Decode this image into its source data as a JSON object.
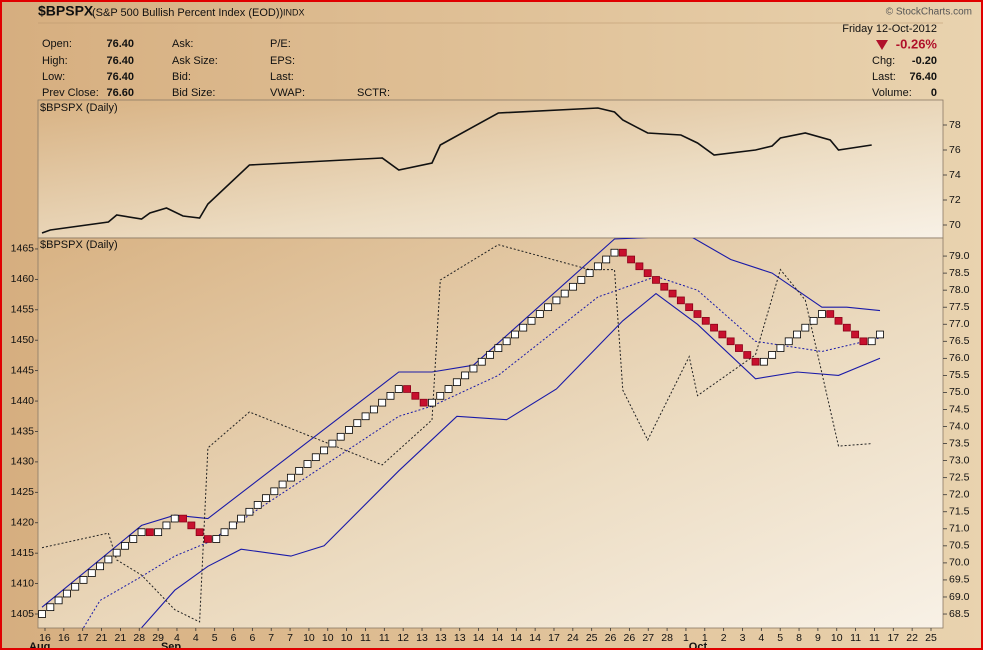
{
  "header": {
    "symbol": "$BPSPX",
    "name": "(S&P 500 Bullish Percent Index (EOD))",
    "exchange": "INDX",
    "source": "© StockCharts.com",
    "date": "Friday  12-Oct-2012",
    "change_pct": "-0.26%",
    "quote": [
      {
        "label": "Open:",
        "value": "76.40"
      },
      {
        "label": "High:",
        "value": "76.40"
      },
      {
        "label": "Low:",
        "value": "76.40"
      },
      {
        "label": "Prev Close:",
        "value": "76.60"
      }
    ],
    "bid_ask": [
      "Ask:",
      "Ask Size:",
      "Bid:",
      "Bid Size:"
    ],
    "fundamentals": [
      "P/E:",
      "EPS:",
      "Last:",
      "VWAP:"
    ],
    "sctr": "SCTR:",
    "summary": [
      {
        "label": "Chg:",
        "value": "-0.20"
      },
      {
        "label": "Last:",
        "value": "76.40"
      },
      {
        "label": "Volume:",
        "value": "0"
      }
    ]
  },
  "chart_data": [
    {
      "type": "line",
      "label": "$BPSPX (Daily)",
      "color": "#111111",
      "x": [
        0,
        1,
        8,
        9,
        12,
        13,
        15,
        17,
        19,
        20,
        25,
        41,
        43,
        47,
        48,
        55,
        67,
        69,
        70,
        73,
        77,
        79,
        81,
        86,
        88,
        89,
        92,
        95,
        96,
        100
      ],
      "values": [
        69.36,
        69.6,
        70.24,
        70.8,
        70.48,
        70.96,
        71.36,
        70.72,
        70.56,
        71.68,
        74.8,
        75.36,
        74.4,
        74.96,
        76.4,
        78.96,
        79.36,
        79.04,
        78.4,
        77.36,
        77.2,
        76.56,
        75.6,
        76.0,
        76.32,
        76.96,
        77.36,
        76.8,
        76.0,
        76.4
      ],
      "ylim": [
        68.96,
        80
      ],
      "yticks": [
        70,
        72,
        74,
        76,
        78
      ]
    },
    {
      "type": "renko",
      "label": "$BPSPX (Daily)",
      "up_color": "#ffffff",
      "down_color": "#c8102e",
      "values": [
        68.6,
        68.8,
        69.0,
        69.2,
        69.4,
        69.6,
        69.8,
        70.0,
        70.2,
        70.4,
        70.6,
        70.8,
        71.0,
        70.8,
        71.0,
        71.2,
        71.4,
        71.2,
        71.0,
        70.8,
        70.6,
        70.8,
        71.0,
        71.2,
        71.4,
        71.6,
        71.8,
        72.0,
        72.2,
        72.4,
        72.6,
        72.8,
        73.0,
        73.2,
        73.4,
        73.6,
        73.8,
        74.0,
        74.2,
        74.4,
        74.6,
        74.8,
        75.0,
        75.2,
        75.0,
        74.8,
        74.6,
        74.8,
        75.0,
        75.2,
        75.4,
        75.6,
        75.8,
        76.0,
        76.2,
        76.4,
        76.6,
        76.8,
        77.0,
        77.2,
        77.4,
        77.6,
        77.8,
        78.0,
        78.2,
        78.4,
        78.6,
        78.8,
        79.0,
        79.2,
        79.0,
        78.8,
        78.6,
        78.4,
        78.2,
        78.0,
        77.8,
        77.6,
        77.4,
        77.2,
        77.0,
        76.8,
        76.6,
        76.4,
        76.2,
        76.0,
        75.8,
        76.0,
        76.2,
        76.4,
        76.6,
        76.8,
        77.0,
        77.2,
        77.4,
        77.2,
        77.0,
        76.8,
        76.6,
        76.4,
        76.6,
        76.8
      ],
      "ylim": [
        68.09,
        79.53
      ],
      "yticks": [
        68.5,
        {
          "value": 69,
          "label": "69.0"
        },
        69.5,
        {
          "value": 70,
          "label": "70.0"
        },
        70.5,
        {
          "value": 71,
          "label": "71.0"
        },
        71.5,
        {
          "value": 72,
          "label": "72.0"
        },
        72.5,
        {
          "value": 73,
          "label": "73.0"
        },
        73.5,
        {
          "value": 74,
          "label": "74.0"
        },
        74.5,
        {
          "value": 75,
          "label": "75.0"
        },
        75.5,
        {
          "value": 76,
          "label": "76.0"
        },
        76.5,
        {
          "value": 77,
          "label": "77.0"
        },
        77.5,
        {
          "value": 78,
          "label": "78.0"
        },
        78.5,
        {
          "value": 79,
          "label": "79.0"
        }
      ],
      "y2lim": [
        1402.7,
        1466.8
      ],
      "y2ticks": [
        1405,
        1410,
        1415,
        1420,
        1425,
        1430,
        1435,
        1440,
        1445,
        1450,
        1455,
        1460,
        1465
      ],
      "xtick_labels": [
        "16",
        "16",
        "17",
        "21",
        "21",
        "28",
        "29",
        "4",
        "4",
        "5",
        "6",
        "6",
        "7",
        "7",
        "10",
        "10",
        "10",
        "11",
        "11",
        "12",
        "13",
        "13",
        "13",
        "14",
        "14",
        "14",
        "14",
        "17",
        "24",
        "25",
        "26",
        "26",
        "27",
        "28",
        "1",
        "1",
        "2",
        "3",
        "4",
        "5",
        "8",
        "9",
        "10",
        "11",
        "11",
        "17",
        "22",
        "25"
      ],
      "months": [
        "Aug",
        "Sep",
        "Oct"
      ],
      "series": [
        {
          "color": "#1a1aa8",
          "style": "solid",
          "x": [
            0,
            12,
            16,
            20,
            43,
            47,
            52,
            69,
            78,
            83,
            88,
            94,
            97,
            101
          ],
          "values": [
            68.7,
            71.1,
            71.4,
            71.3,
            75.6,
            75.6,
            75.8,
            79.5,
            79.6,
            78.9,
            78.5,
            77.5,
            77.5,
            77.4
          ]
        },
        {
          "color": "#1a1aa8",
          "style": "dotted",
          "x": [
            5,
            7,
            12,
            16,
            20,
            43,
            47,
            55,
            67,
            74,
            79,
            86,
            94,
            101
          ],
          "values": [
            68.1,
            68.9,
            69.6,
            70.2,
            70.6,
            74.3,
            74.6,
            75.5,
            77.8,
            78.4,
            78.0,
            76.5,
            76.2,
            76.6
          ]
        },
        {
          "color": "#1a1aa8",
          "style": "solid",
          "x": [
            12,
            16,
            20,
            24,
            30,
            34,
            43,
            50,
            56,
            62,
            70,
            74,
            79,
            86,
            91,
            96,
            101
          ],
          "values": [
            68.1,
            69.2,
            69.9,
            70.4,
            70.2,
            70.5,
            72.7,
            74.3,
            74.2,
            75.1,
            77.1,
            77.9,
            77.0,
            75.4,
            75.6,
            75.5,
            76.0
          ]
        },
        {
          "color": "#222222",
          "style": "dotted",
          "axis": "y2",
          "x": [
            0,
            8,
            9,
            12,
            16,
            19,
            20,
            25,
            41,
            47,
            48,
            55,
            66,
            69,
            70,
            73,
            78,
            79,
            86,
            89,
            92,
            96,
            100
          ],
          "values": [
            1415.9,
            1418.3,
            1413.9,
            1411.4,
            1405.7,
            1403.7,
            1432.3,
            1438.2,
            1429.5,
            1436.9,
            1459.9,
            1465.7,
            1461.6,
            1461.6,
            1441.8,
            1433.6,
            1447.3,
            1440.9,
            1447.6,
            1461.6,
            1456.6,
            1432.6,
            1433.0
          ]
        }
      ]
    }
  ]
}
